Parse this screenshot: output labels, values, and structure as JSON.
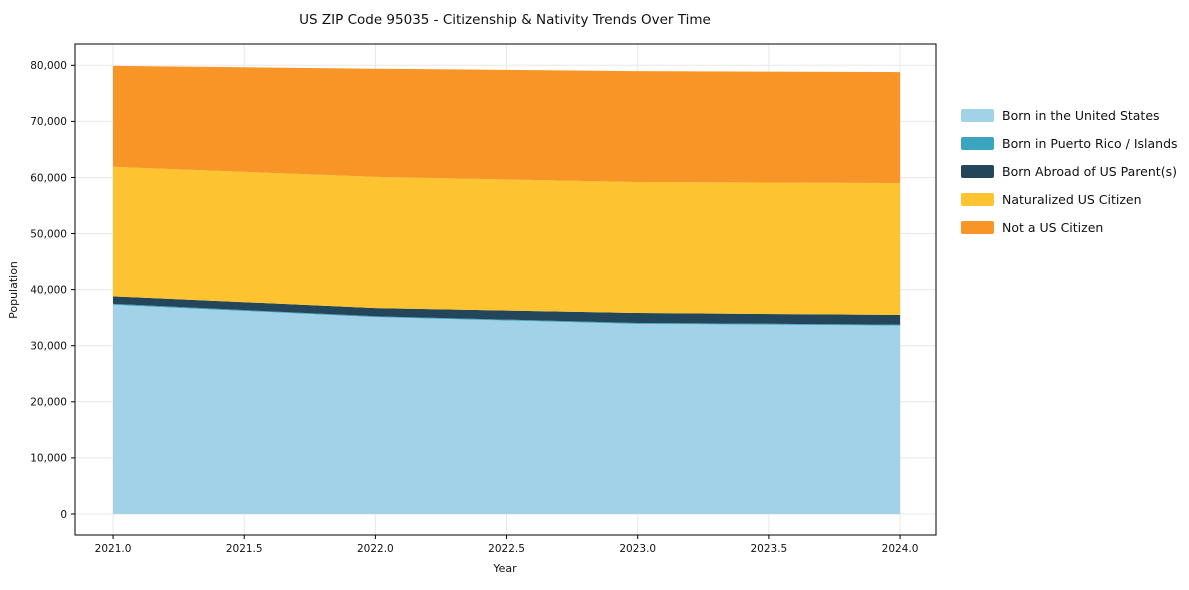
{
  "chart_data": {
    "type": "area",
    "stacked": true,
    "title": "US ZIP Code 95035 - Citizenship & Nativity Trends Over Time",
    "xlabel": "Year",
    "ylabel": "Population",
    "x": [
      2021,
      2022,
      2023,
      2024
    ],
    "series": [
      {
        "name": "Born in the United States",
        "color": "#A2D2E8",
        "values": [
          37300,
          35100,
          33900,
          33600
        ]
      },
      {
        "name": "Born in Puerto Rico / Islands",
        "color": "#3AA4C1",
        "values": [
          150,
          150,
          150,
          150
        ]
      },
      {
        "name": "Born Abroad of US Parent(s)",
        "color": "#24465A",
        "values": [
          1350,
          1450,
          1780,
          1720
        ]
      },
      {
        "name": "Naturalized US Citizen",
        "color": "#FDC331",
        "values": [
          23100,
          23400,
          23370,
          23530
        ]
      },
      {
        "name": "Not a US Citizen",
        "color": "#F79627",
        "values": [
          18000,
          19300,
          19770,
          19790
        ]
      }
    ],
    "xticks": {
      "values": [
        2021.0,
        2021.5,
        2022.0,
        2022.5,
        2023.0,
        2023.5,
        2024.0
      ],
      "labels": [
        "2021.0",
        "2021.5",
        "2022.0",
        "2022.5",
        "2023.0",
        "2023.5",
        "2024.0"
      ]
    },
    "yticks": {
      "values": [
        0,
        10000,
        20000,
        30000,
        40000,
        50000,
        60000,
        70000,
        80000
      ],
      "labels": [
        "0",
        "10,000",
        "20,000",
        "30,000",
        "40,000",
        "50,000",
        "60,000",
        "70,000",
        "80,000"
      ]
    },
    "xlim": [
      2020.855,
      2024.137
    ],
    "ylim": [
      -3750,
      83800
    ],
    "grid": true,
    "grid_color": "#e8e8e8",
    "spine_color": "#000000",
    "legend_position": "right"
  }
}
